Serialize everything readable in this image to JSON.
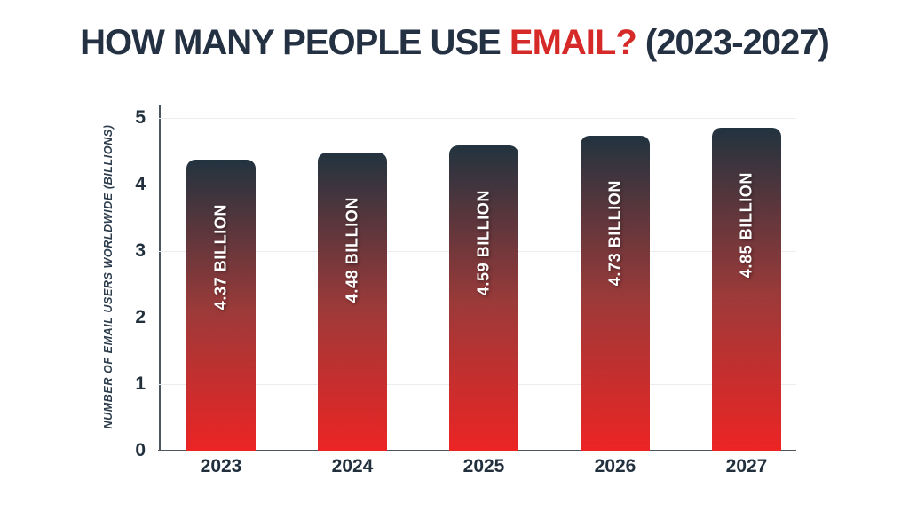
{
  "title": {
    "text_before": "HOW MANY PEOPLE USE ",
    "highlight": "EMAIL?",
    "text_after": " (2023-2027)",
    "dark_color": "#243143",
    "highlight_color": "#d62a28"
  },
  "chart_data": {
    "type": "bar",
    "title": "HOW MANY PEOPLE USE EMAIL? (2023-2027)",
    "categories": [
      "2023",
      "2024",
      "2025",
      "2026",
      "2027"
    ],
    "values": [
      4.37,
      4.48,
      4.59,
      4.73,
      4.85
    ],
    "bar_labels": [
      "4.37 BILLION",
      "4.48 BILLION",
      "4.59 BILLION",
      "4.73 BILLION",
      "4.85 BILLION"
    ],
    "xlabel": "",
    "ylabel": "NUMBER OF EMAIL USERS WORLDWIDE (BILLIONS)",
    "ylim": [
      0,
      5
    ],
    "yticks": [
      "0",
      "1",
      "2",
      "3",
      "4",
      "5"
    ],
    "grid": true,
    "legend": "none",
    "colors": {
      "background": "#ffffff",
      "bar_gradient_top": "#22333f",
      "bar_gradient_mid": "#9c3a39",
      "bar_gradient_bottom": "#ec2424",
      "bar_label_text": "#ffffff",
      "gridline": "#ececec",
      "axis_line": "#4d565e",
      "tick_text": "#22303e"
    }
  }
}
